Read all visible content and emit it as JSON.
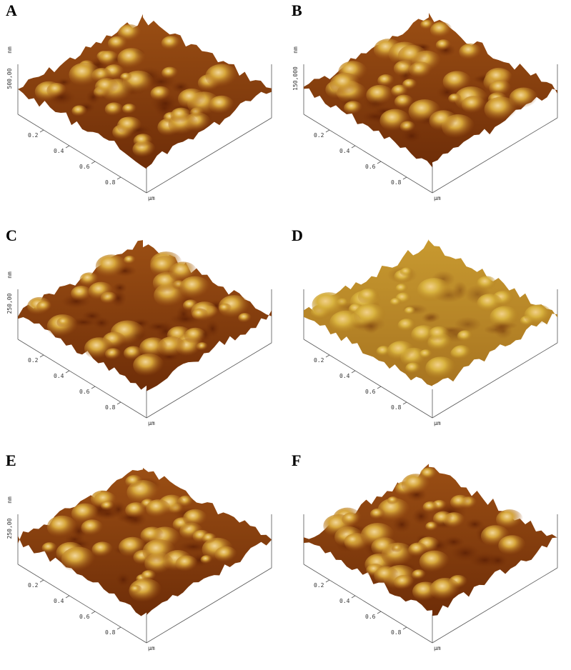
{
  "panels": [
    {
      "label": "A",
      "z_label": "500,00",
      "z_unit": "nm",
      "x_ticks": [
        "0.2",
        "0.4",
        "0.6",
        "0.8"
      ],
      "x_unit": "µm"
    },
    {
      "label": "B",
      "z_label": "150,000",
      "z_unit": "nm",
      "x_ticks": [
        "0.2",
        "0.4",
        "0.6",
        "0.8"
      ],
      "x_unit": "µm"
    },
    {
      "label": "C",
      "z_label": "250,00",
      "z_unit": "nm",
      "x_ticks": [
        "0.2",
        "0.4",
        "0.6",
        "0.8"
      ],
      "x_unit": "µm"
    },
    {
      "label": "D",
      "x_ticks": [
        "0.2",
        "0.4",
        "0.6",
        "0.8"
      ],
      "x_unit": "µm"
    },
    {
      "label": "E",
      "z_label": "250,00",
      "z_unit": "nm",
      "x_ticks": [
        "0.2",
        "0.4",
        "0.6",
        "0.8"
      ],
      "x_unit": "µm"
    },
    {
      "label": "F",
      "x_ticks": [
        "0.2",
        "0.4",
        "0.6",
        "0.8"
      ],
      "x_unit": "µm"
    }
  ]
}
